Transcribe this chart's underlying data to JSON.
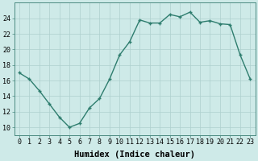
{
  "x": [
    0,
    1,
    2,
    3,
    4,
    5,
    6,
    7,
    8,
    9,
    10,
    11,
    12,
    13,
    14,
    15,
    16,
    17,
    18,
    19,
    20,
    21,
    22,
    23
  ],
  "y": [
    17,
    16.2,
    14.7,
    13,
    11.3,
    10,
    10.5,
    12.5,
    13.7,
    16.2,
    19.3,
    21,
    23.8,
    23.4,
    23.4,
    24.5,
    24.2,
    24.8,
    23.5,
    23.7,
    23.3,
    23.2,
    19.3,
    16.2
  ],
  "line_color": "#2e7d6e",
  "marker": "+",
  "marker_size": 3.5,
  "marker_lw": 1.0,
  "bg_color": "#ceeae8",
  "grid_color": "#aed0ce",
  "xlabel": "Humidex (Indice chaleur)",
  "xlabel_fontsize": 7.5,
  "xtick_labels": [
    "0",
    "1",
    "2",
    "3",
    "4",
    "5",
    "6",
    "7",
    "8",
    "9",
    "10",
    "11",
    "12",
    "13",
    "14",
    "15",
    "16",
    "17",
    "18",
    "19",
    "20",
    "21",
    "22",
    "23"
  ],
  "ytick_values": [
    10,
    12,
    14,
    16,
    18,
    20,
    22,
    24
  ],
  "ylim": [
    9,
    26
  ],
  "xlim": [
    -0.5,
    23.5
  ],
  "line_width": 1.0,
  "tick_fontsize": 6.0
}
